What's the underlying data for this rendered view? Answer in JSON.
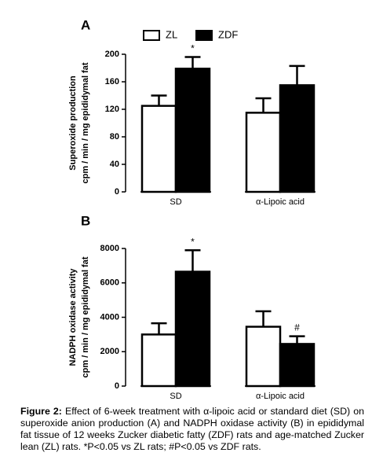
{
  "chart_data": [
    {
      "type": "bar",
      "panel": "A",
      "ylabel": [
        "Superoxide production",
        "cpm / min / mg epididymal fat"
      ],
      "categories": [
        "SD",
        "α-Lipoic acid"
      ],
      "ylim": [
        0,
        200
      ],
      "yticks": [
        0,
        40,
        80,
        120,
        160,
        200
      ],
      "legend": true,
      "series": [
        {
          "name": "ZL",
          "color": "#ffffff",
          "values": [
            125,
            115
          ],
          "errors": [
            15,
            21
          ],
          "annotations": [
            null,
            null
          ]
        },
        {
          "name": "ZDF",
          "color": "#000000",
          "values": [
            179,
            155
          ],
          "errors": [
            17,
            28
          ],
          "annotations": [
            "*",
            null
          ]
        }
      ]
    },
    {
      "type": "bar",
      "panel": "B",
      "ylabel": [
        "NADPH oxidase activity",
        "cpm / min / mg epididymal fat"
      ],
      "categories": [
        "SD",
        "α-Lipoic acid"
      ],
      "ylim": [
        0,
        8000
      ],
      "yticks": [
        0,
        2000,
        4000,
        6000,
        8000
      ],
      "legend": false,
      "series": [
        {
          "color": "#ffffff",
          "values": [
            3000,
            3450
          ],
          "errors": [
            650,
            900
          ],
          "annotations": [
            null,
            null
          ]
        },
        {
          "color": "#000000",
          "values": [
            6650,
            2450
          ],
          "errors": [
            1250,
            450
          ],
          "annotations": [
            "*",
            "#"
          ]
        }
      ]
    }
  ],
  "caption": {
    "label": "Figure 2:",
    "text": "Effect of 6-week treatment with α-lipoic acid or standard diet (SD) on superoxide anion production (A) and NADPH oxidase activity (B) in epididymal fat tissue of 12 weeks Zucker diabetic fatty (ZDF) rats and age-matched Zucker lean (ZL) rats. *P<0.05 vs ZL rats; #P<0.05 vs ZDF rats."
  }
}
